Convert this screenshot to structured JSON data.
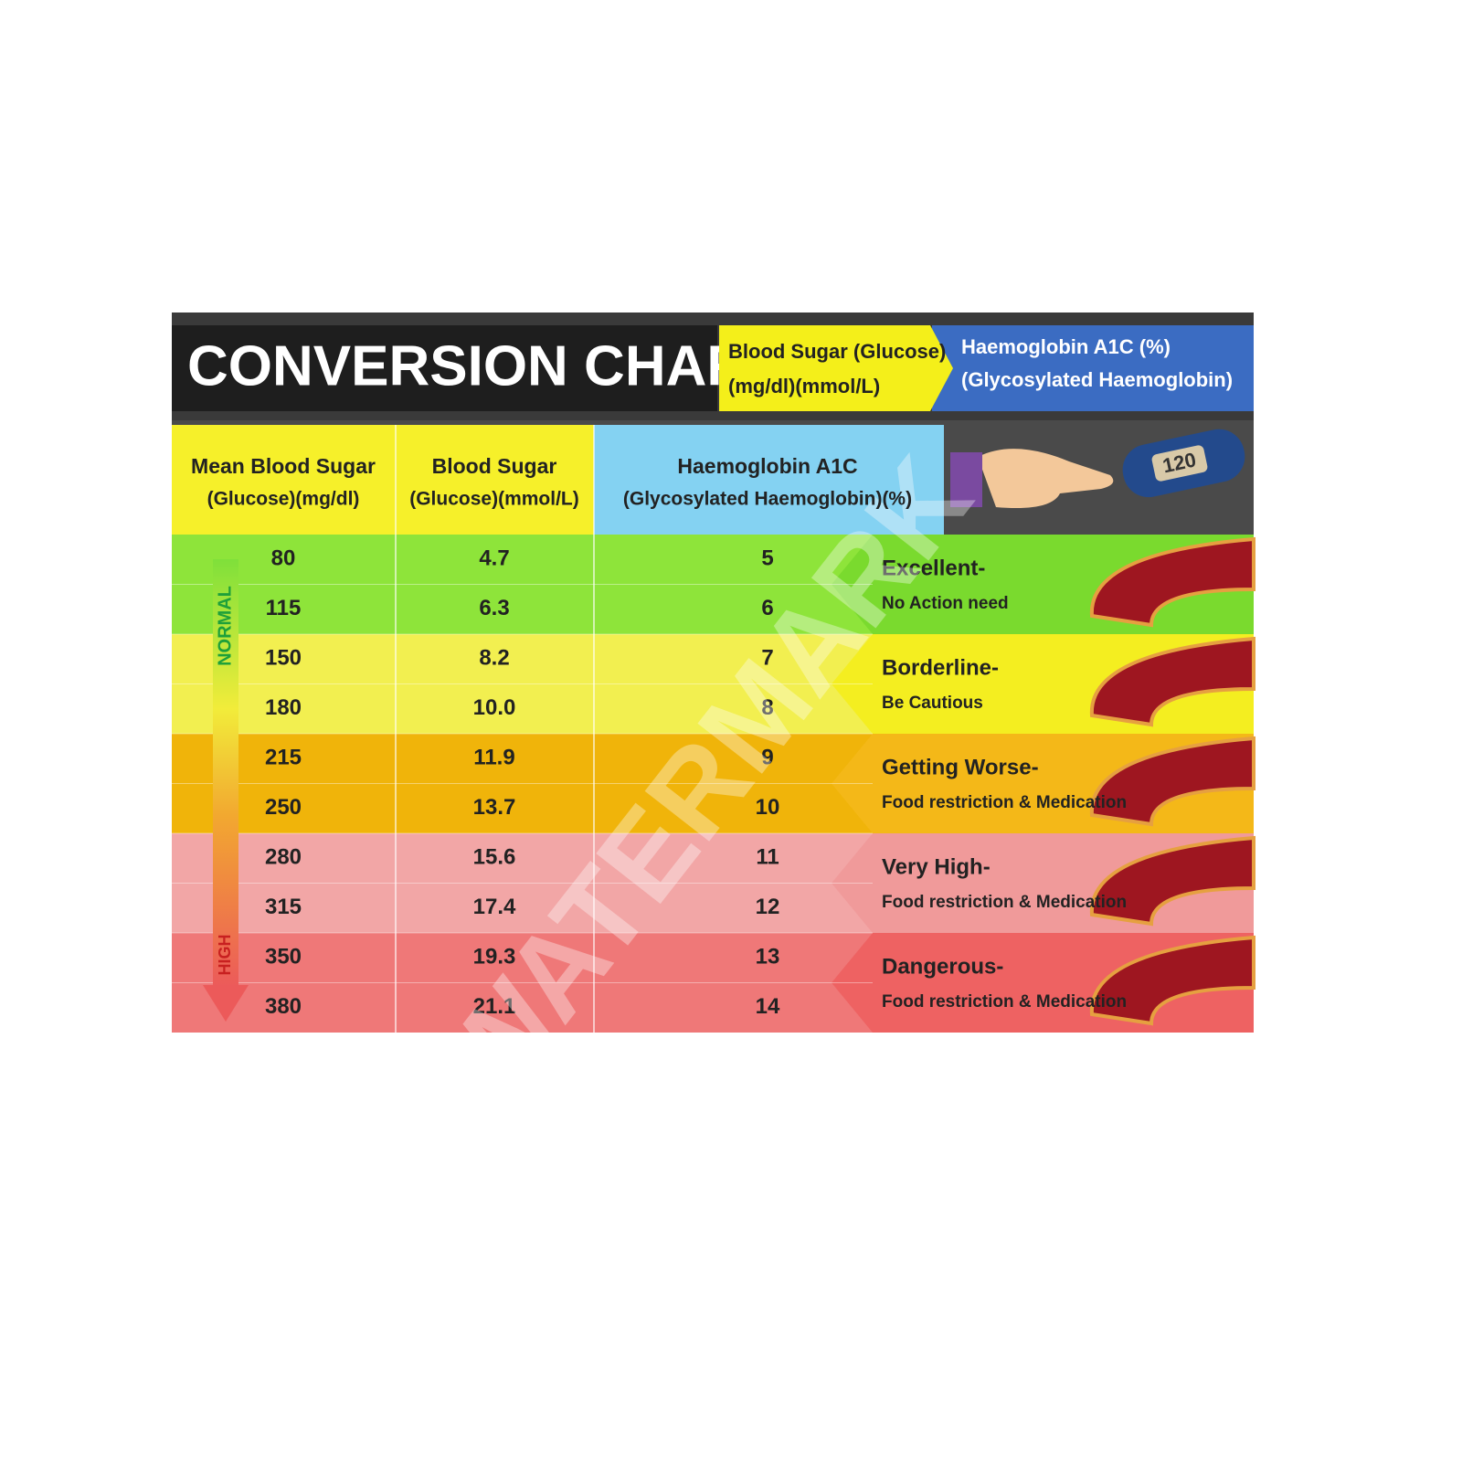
{
  "header": {
    "title": "CONVERSION CHART",
    "tag_1": [
      "Blood Sugar (Glucose)",
      "(mg/dl)(mmol/L)"
    ],
    "tag_2": [
      "Haemoglobin A1C (%)",
      "(Glycosylated Haemoglobin)"
    ]
  },
  "table": {
    "columns": [
      [
        "Mean Blood Sugar",
        "(Glucose)(mg/dl)"
      ],
      [
        "Blood Sugar",
        "(Glucose)(mmol/L)"
      ],
      [
        "Haemoglobin A1C",
        "(Glycosylated Haemoglobin)(%)"
      ]
    ],
    "rows": [
      [
        "80",
        "4.7",
        "5"
      ],
      [
        "115",
        "6.3",
        "6"
      ],
      [
        "150",
        "8.2",
        "7"
      ],
      [
        "180",
        "10.0",
        "8"
      ],
      [
        "215",
        "11.9",
        "9"
      ],
      [
        "250",
        "13.7",
        "10"
      ],
      [
        "280",
        "15.6",
        "11"
      ],
      [
        "315",
        "17.4",
        "12"
      ],
      [
        "350",
        "19.3",
        "13"
      ],
      [
        "380",
        "21.1",
        "14"
      ]
    ]
  },
  "categories": [
    {
      "title": "Excellent-",
      "note": "No Action need"
    },
    {
      "title": "Borderline-",
      "note": "Be Cautious"
    },
    {
      "title": "Getting Worse-",
      "note": "Food restriction & Medication"
    },
    {
      "title": "Very High-",
      "note": "Food restriction & Medication"
    },
    {
      "title": "Dangerous-",
      "note": "Food restriction & Medication"
    }
  ],
  "scale": {
    "top": "NORMAL",
    "bottom": "HIGH"
  },
  "meter_reading": "120",
  "watermark": "WATERMARK"
}
